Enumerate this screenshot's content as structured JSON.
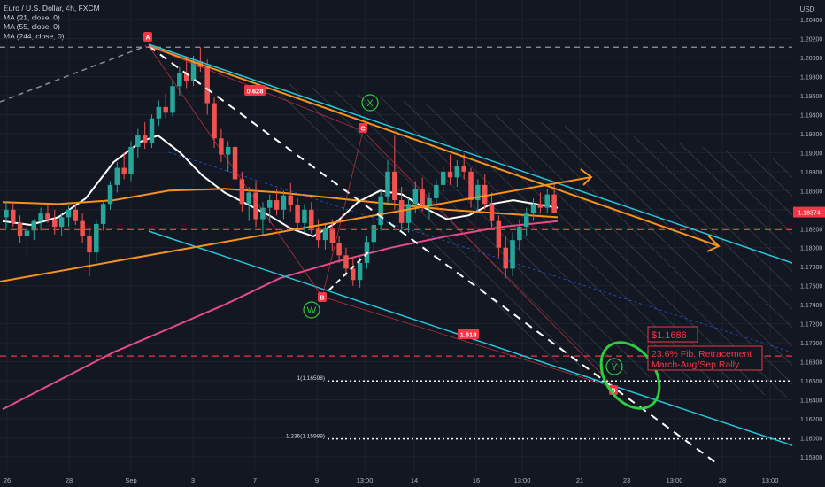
{
  "header": {
    "symbol_line": "Euro / U.S. Dollar, 4h, FXCM",
    "indicators": [
      "MA (21, close, 0)",
      "MA (55, close, 0)",
      "MA (244, close, 0)"
    ],
    "currency": "USD"
  },
  "colors": {
    "background": "#131722",
    "grid": "#1e222d",
    "up_candle": "#26a69a",
    "down_candle": "#ef5350",
    "ma21": "#ffffff",
    "ma55": "#f7931a",
    "ma244": "#e84a8a",
    "orange_line": "#f7931a",
    "cyan_line": "#26c6da",
    "fib_red": "#f23645",
    "green_circle": "#2ecc40",
    "channel_lines": "#6a6d78"
  },
  "chart_data": {
    "type": "candlestick",
    "title": "Euro / U.S. Dollar, 4h, FXCM",
    "ylim": [
      1.1565,
      1.2055
    ],
    "y_ticks": [
      "1.20400",
      "1.20200",
      "1.20000",
      "1.19800",
      "1.19600",
      "1.19400",
      "1.19200",
      "1.19000",
      "1.18800",
      "1.18600",
      "1.18400",
      "1.18200",
      "1.18000",
      "1.17800",
      "1.17600",
      "1.17400",
      "1.17200",
      "1.17000",
      "1.16800",
      "1.16600",
      "1.16400",
      "1.16200",
      "1.16000",
      "1.15800"
    ],
    "x_ticks": [
      "26",
      "28",
      "Sep",
      "3",
      "7",
      "9",
      "13:00",
      "14",
      "16",
      "13:00",
      "21",
      "23",
      "13:00",
      "28",
      "13:00"
    ],
    "last_price": "1.18374",
    "candles": [
      {
        "o": 1.1832,
        "h": 1.1848,
        "l": 1.182,
        "c": 1.184
      },
      {
        "o": 1.184,
        "h": 1.1848,
        "l": 1.1822,
        "c": 1.1826
      },
      {
        "o": 1.1826,
        "h": 1.1834,
        "l": 1.1805,
        "c": 1.1812
      },
      {
        "o": 1.1812,
        "h": 1.1824,
        "l": 1.179,
        "c": 1.1818
      },
      {
        "o": 1.1818,
        "h": 1.183,
        "l": 1.1808,
        "c": 1.1828
      },
      {
        "o": 1.1828,
        "h": 1.1842,
        "l": 1.1818,
        "c": 1.1836
      },
      {
        "o": 1.1836,
        "h": 1.1846,
        "l": 1.1826,
        "c": 1.183
      },
      {
        "o": 1.183,
        "h": 1.184,
        "l": 1.1814,
        "c": 1.1822
      },
      {
        "o": 1.1822,
        "h": 1.1836,
        "l": 1.1812,
        "c": 1.1832
      },
      {
        "o": 1.1832,
        "h": 1.1844,
        "l": 1.1822,
        "c": 1.184
      },
      {
        "o": 1.184,
        "h": 1.1848,
        "l": 1.1824,
        "c": 1.1828
      },
      {
        "o": 1.1828,
        "h": 1.1836,
        "l": 1.1805,
        "c": 1.1812
      },
      {
        "o": 1.1812,
        "h": 1.1822,
        "l": 1.177,
        "c": 1.1795
      },
      {
        "o": 1.1795,
        "h": 1.183,
        "l": 1.1785,
        "c": 1.1825
      },
      {
        "o": 1.1825,
        "h": 1.185,
        "l": 1.1818,
        "c": 1.1846
      },
      {
        "o": 1.1846,
        "h": 1.187,
        "l": 1.184,
        "c": 1.1866
      },
      {
        "o": 1.1866,
        "h": 1.189,
        "l": 1.1858,
        "c": 1.1884
      },
      {
        "o": 1.1884,
        "h": 1.19,
        "l": 1.1872,
        "c": 1.1878
      },
      {
        "o": 1.1878,
        "h": 1.1912,
        "l": 1.187,
        "c": 1.1906
      },
      {
        "o": 1.1906,
        "h": 1.1925,
        "l": 1.1894,
        "c": 1.1918
      },
      {
        "o": 1.1918,
        "h": 1.1932,
        "l": 1.1904,
        "c": 1.191
      },
      {
        "o": 1.191,
        "h": 1.194,
        "l": 1.1905,
        "c": 1.1936
      },
      {
        "o": 1.1936,
        "h": 1.1955,
        "l": 1.1928,
        "c": 1.1948
      },
      {
        "o": 1.1948,
        "h": 1.1962,
        "l": 1.1936,
        "c": 1.1942
      },
      {
        "o": 1.1942,
        "h": 1.1975,
        "l": 1.1938,
        "c": 1.197
      },
      {
        "o": 1.197,
        "h": 1.199,
        "l": 1.196,
        "c": 1.1984
      },
      {
        "o": 1.1984,
        "h": 1.1998,
        "l": 1.1968,
        "c": 1.1975
      },
      {
        "o": 1.1975,
        "h": 1.2002,
        "l": 1.197,
        "c": 1.1996
      },
      {
        "o": 1.1996,
        "h": 1.2011,
        "l": 1.1985,
        "c": 1.199
      },
      {
        "o": 1.199,
        "h": 1.1998,
        "l": 1.194,
        "c": 1.1952
      },
      {
        "o": 1.1952,
        "h": 1.1958,
        "l": 1.1905,
        "c": 1.1915
      },
      {
        "o": 1.1915,
        "h": 1.1925,
        "l": 1.189,
        "c": 1.1898
      },
      {
        "o": 1.1898,
        "h": 1.1912,
        "l": 1.188,
        "c": 1.1906
      },
      {
        "o": 1.1906,
        "h": 1.1914,
        "l": 1.1868,
        "c": 1.1872
      },
      {
        "o": 1.1872,
        "h": 1.188,
        "l": 1.1838,
        "c": 1.1846
      },
      {
        "o": 1.1846,
        "h": 1.1864,
        "l": 1.1828,
        "c": 1.1858
      },
      {
        "o": 1.1858,
        "h": 1.187,
        "l": 1.1822,
        "c": 1.183
      },
      {
        "o": 1.183,
        "h": 1.1848,
        "l": 1.1812,
        "c": 1.1842
      },
      {
        "o": 1.1842,
        "h": 1.1856,
        "l": 1.1826,
        "c": 1.185
      },
      {
        "o": 1.185,
        "h": 1.1862,
        "l": 1.1834,
        "c": 1.184
      },
      {
        "o": 1.184,
        "h": 1.186,
        "l": 1.183,
        "c": 1.1855
      },
      {
        "o": 1.1855,
        "h": 1.1868,
        "l": 1.1838,
        "c": 1.1845
      },
      {
        "o": 1.1845,
        "h": 1.1852,
        "l": 1.1818,
        "c": 1.1826
      },
      {
        "o": 1.1826,
        "h": 1.1846,
        "l": 1.1816,
        "c": 1.184
      },
      {
        "o": 1.184,
        "h": 1.1848,
        "l": 1.1815,
        "c": 1.182
      },
      {
        "o": 1.182,
        "h": 1.183,
        "l": 1.18,
        "c": 1.1808
      },
      {
        "o": 1.1808,
        "h": 1.1826,
        "l": 1.1798,
        "c": 1.182
      },
      {
        "o": 1.182,
        "h": 1.183,
        "l": 1.1796,
        "c": 1.1805
      },
      {
        "o": 1.1805,
        "h": 1.1812,
        "l": 1.1784,
        "c": 1.1792
      },
      {
        "o": 1.1792,
        "h": 1.18,
        "l": 1.177,
        "c": 1.1778
      },
      {
        "o": 1.1778,
        "h": 1.179,
        "l": 1.176,
        "c": 1.1766
      },
      {
        "o": 1.1766,
        "h": 1.179,
        "l": 1.1758,
        "c": 1.1784
      },
      {
        "o": 1.1784,
        "h": 1.1812,
        "l": 1.1778,
        "c": 1.1806
      },
      {
        "o": 1.1806,
        "h": 1.183,
        "l": 1.1796,
        "c": 1.1824
      },
      {
        "o": 1.1824,
        "h": 1.186,
        "l": 1.1818,
        "c": 1.1854
      },
      {
        "o": 1.1854,
        "h": 1.1892,
        "l": 1.1846,
        "c": 1.188
      },
      {
        "o": 1.188,
        "h": 1.1918,
        "l": 1.184,
        "c": 1.185
      },
      {
        "o": 1.185,
        "h": 1.1864,
        "l": 1.1818,
        "c": 1.1826
      },
      {
        "o": 1.1826,
        "h": 1.1852,
        "l": 1.1816,
        "c": 1.1846
      },
      {
        "o": 1.1846,
        "h": 1.187,
        "l": 1.1836,
        "c": 1.1862
      },
      {
        "o": 1.1862,
        "h": 1.1874,
        "l": 1.1838,
        "c": 1.1844
      },
      {
        "o": 1.1844,
        "h": 1.1858,
        "l": 1.183,
        "c": 1.1852
      },
      {
        "o": 1.1852,
        "h": 1.1872,
        "l": 1.1846,
        "c": 1.1866
      },
      {
        "o": 1.1866,
        "h": 1.1886,
        "l": 1.1856,
        "c": 1.188
      },
      {
        "o": 1.188,
        "h": 1.1898,
        "l": 1.1866,
        "c": 1.1874
      },
      {
        "o": 1.1874,
        "h": 1.1892,
        "l": 1.1864,
        "c": 1.1886
      },
      {
        "o": 1.1886,
        "h": 1.1899,
        "l": 1.1872,
        "c": 1.188
      },
      {
        "o": 1.188,
        "h": 1.1884,
        "l": 1.1842,
        "c": 1.185
      },
      {
        "o": 1.185,
        "h": 1.1872,
        "l": 1.1838,
        "c": 1.1866
      },
      {
        "o": 1.1866,
        "h": 1.1878,
        "l": 1.184,
        "c": 1.1846
      },
      {
        "o": 1.1846,
        "h": 1.1858,
        "l": 1.182,
        "c": 1.1828
      },
      {
        "o": 1.1828,
        "h": 1.1834,
        "l": 1.179,
        "c": 1.18
      },
      {
        "o": 1.18,
        "h": 1.1812,
        "l": 1.1768,
        "c": 1.1778
      },
      {
        "o": 1.1778,
        "h": 1.1816,
        "l": 1.177,
        "c": 1.1808
      },
      {
        "o": 1.1808,
        "h": 1.183,
        "l": 1.1798,
        "c": 1.1822
      },
      {
        "o": 1.1822,
        "h": 1.1842,
        "l": 1.1812,
        "c": 1.1836
      },
      {
        "o": 1.1836,
        "h": 1.1852,
        "l": 1.1828,
        "c": 1.1846
      },
      {
        "o": 1.1846,
        "h": 1.1858,
        "l": 1.1836,
        "c": 1.1842
      },
      {
        "o": 1.1842,
        "h": 1.1862,
        "l": 1.1836,
        "c": 1.1856
      },
      {
        "o": 1.1856,
        "h": 1.1868,
        "l": 1.184,
        "c": 1.1837
      }
    ],
    "series": [
      {
        "name": "MA (21, close, 0)",
        "color": "#ffffff",
        "points": [
          [
            0,
            1.1828
          ],
          [
            0.05,
            1.1824
          ],
          [
            0.1,
            1.1832
          ],
          [
            0.15,
            1.1852
          ],
          [
            0.2,
            1.189
          ],
          [
            0.25,
            1.1912
          ],
          [
            0.28,
            1.1918
          ],
          [
            0.32,
            1.19
          ],
          [
            0.36,
            1.1876
          ],
          [
            0.4,
            1.1858
          ],
          [
            0.44,
            1.1846
          ],
          [
            0.48,
            1.1834
          ],
          [
            0.52,
            1.182
          ],
          [
            0.56,
            1.1812
          ],
          [
            0.6,
            1.1826
          ],
          [
            0.64,
            1.1848
          ],
          [
            0.68,
            1.186
          ],
          [
            0.72,
            1.1856
          ],
          [
            0.76,
            1.1842
          ],
          [
            0.8,
            1.183
          ],
          [
            0.84,
            1.1834
          ],
          [
            0.88,
            1.1846
          ],
          [
            0.92,
            1.185
          ],
          [
            0.96,
            1.1846
          ],
          [
            1,
            1.1842
          ]
        ]
      },
      {
        "name": "MA (55, close, 0)",
        "color": "#f7931a",
        "points": [
          [
            0,
            1.1848
          ],
          [
            0.1,
            1.1846
          ],
          [
            0.2,
            1.185
          ],
          [
            0.3,
            1.186
          ],
          [
            0.4,
            1.1862
          ],
          [
            0.5,
            1.1858
          ],
          [
            0.6,
            1.1852
          ],
          [
            0.7,
            1.1846
          ],
          [
            0.8,
            1.184
          ],
          [
            0.9,
            1.1836
          ],
          [
            1,
            1.1832
          ]
        ]
      },
      {
        "name": "MA (244, close, 0)",
        "color": "#e84a8a",
        "points": [
          [
            0,
            1.163
          ],
          [
            0.1,
            1.166
          ],
          [
            0.2,
            1.169
          ],
          [
            0.3,
            1.1715
          ],
          [
            0.4,
            1.174
          ],
          [
            0.5,
            1.1768
          ],
          [
            0.6,
            1.1785
          ],
          [
            0.7,
            1.18
          ],
          [
            0.8,
            1.1812
          ],
          [
            0.9,
            1.1822
          ],
          [
            1,
            1.1828
          ]
        ]
      }
    ],
    "pattern_points": {
      "A": "A",
      "B": "B",
      "C": "C",
      "D": "D",
      "W": "W",
      "X": "X",
      "Y": "Y"
    },
    "fib_labels": {
      "r0628": "0.628",
      "r1618": "1.618",
      "l1": "1(1.16598)",
      "l1236": "1.236(1.15989)"
    },
    "annotation": {
      "price": "$1.1686",
      "line1": "23.6% Fib. Retracement",
      "line2": "March-Aug/Sep Rally"
    },
    "grid": true
  }
}
